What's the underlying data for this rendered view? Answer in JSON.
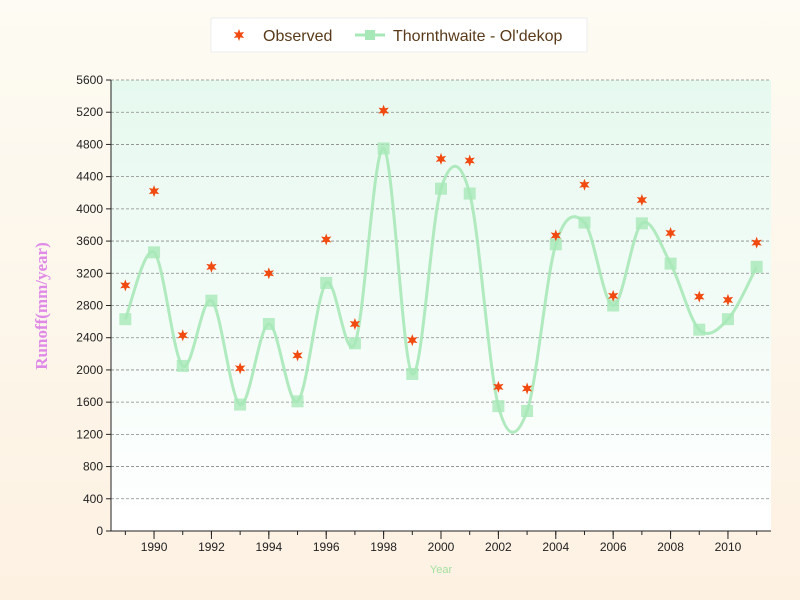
{
  "chart_data": {
    "type": "scatter",
    "xlabel": "Year",
    "ylabel": "Runoff(mm/year)",
    "xlim": [
      1988.5,
      2011.5
    ],
    "ylim": [
      0,
      5600
    ],
    "x_ticks": [
      1990,
      1992,
      1994,
      1996,
      1998,
      2000,
      2002,
      2004,
      2006,
      2008,
      2010
    ],
    "y_ticks": [
      0,
      400,
      800,
      1200,
      1600,
      2000,
      2400,
      2800,
      3200,
      3600,
      4000,
      4400,
      4800,
      5200,
      5600
    ],
    "grid": "horizontal dashed",
    "legend_position": "top-center",
    "series": [
      {
        "name": "Observed",
        "marker": "star",
        "color": "#f04a10",
        "x": [
          1989,
          1990,
          1991,
          1992,
          1993,
          1994,
          1995,
          1996,
          1997,
          1998,
          1999,
          2000,
          2001,
          2002,
          2003,
          2004,
          2005,
          2006,
          2007,
          2008,
          2009,
          2010,
          2011
        ],
        "values": [
          3050,
          4220,
          2430,
          3280,
          2020,
          3200,
          2180,
          3620,
          2570,
          5220,
          2370,
          4620,
          4600,
          1790,
          1770,
          3670,
          4300,
          2920,
          4110,
          3700,
          2910,
          2870,
          3580
        ]
      },
      {
        "name": "Thornthwaite - Ol'dekop",
        "marker": "square",
        "line": "smooth",
        "color": "#a8e8b8",
        "x": [
          1989,
          1990,
          1991,
          1992,
          1993,
          1994,
          1995,
          1996,
          1997,
          1998,
          1999,
          2000,
          2001,
          2002,
          2003,
          2004,
          2005,
          2006,
          2007,
          2008,
          2009,
          2010,
          2011
        ],
        "values": [
          2630,
          3460,
          2050,
          2860,
          1570,
          2570,
          1610,
          3080,
          2330,
          4750,
          1950,
          4250,
          4190,
          1550,
          1490,
          3560,
          3830,
          2800,
          3820,
          3320,
          2500,
          2630,
          3280
        ]
      }
    ]
  },
  "colors": {
    "plot_top": "#e6f9ef",
    "plot_bottom": "#ffffff",
    "axis": "#222222",
    "grid": "#888888"
  }
}
